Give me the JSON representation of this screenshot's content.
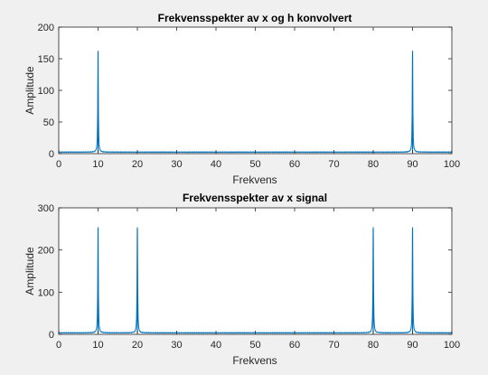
{
  "chart_data": [
    {
      "type": "line",
      "title": "Frekvensspekter av x og h konvolvert",
      "xlabel": "Frekvens",
      "ylabel": "Amplitude",
      "xlim": [
        0,
        100
      ],
      "ylim": [
        0,
        200
      ],
      "xticks": [
        0,
        10,
        20,
        30,
        40,
        50,
        60,
        70,
        80,
        90,
        100
      ],
      "yticks": [
        0,
        50,
        100,
        150,
        200
      ],
      "grid": false,
      "series": [
        {
          "color": "#0072bd",
          "baseline": 2,
          "peaks": [
            {
              "x": 10,
              "y": 160
            },
            {
              "x": 90,
              "y": 160
            }
          ]
        }
      ]
    },
    {
      "type": "line",
      "title": "Frekvensspekter av x signal",
      "xlabel": "Frekvens",
      "ylabel": "Amplitude",
      "xlim": [
        0,
        100
      ],
      "ylim": [
        0,
        300
      ],
      "xticks": [
        0,
        10,
        20,
        30,
        40,
        50,
        60,
        70,
        80,
        90,
        100
      ],
      "yticks": [
        0,
        100,
        200,
        300
      ],
      "grid": false,
      "series": [
        {
          "color": "#0072bd",
          "baseline": 3,
          "peaks": [
            {
              "x": 10,
              "y": 250
            },
            {
              "x": 20,
              "y": 250
            },
            {
              "x": 80,
              "y": 250
            },
            {
              "x": 90,
              "y": 250
            }
          ]
        }
      ]
    }
  ]
}
